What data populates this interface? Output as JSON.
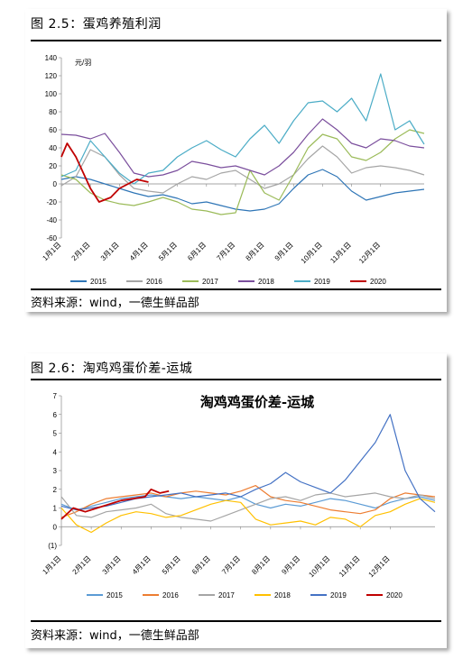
{
  "figure1": {
    "caption": "图 2.5：蛋鸡养殖利润",
    "source": "资料来源：wind，一德生鲜品部",
    "chart_data": {
      "type": "line",
      "title": "",
      "ylabel": "元/羽",
      "ylim": [
        -60,
        140
      ],
      "yticks": [
        "140",
        "120",
        "100",
        "80",
        "60",
        "40",
        "20",
        "0",
        "-20",
        "-40",
        "-60"
      ],
      "xticks": [
        "1月1日",
        "2月1日",
        "3月1日",
        "4月1日",
        "5月1日",
        "6月1日",
        "7月1日",
        "8月1日",
        "9月1日",
        "10月1日",
        "11月1日",
        "12月1日"
      ],
      "x_unit": "month",
      "legend_position": "bottom",
      "series": [
        {
          "name": "2015",
          "color": "#2E75B6",
          "x": [
            0,
            0.5,
            1,
            1.5,
            2,
            2.5,
            3,
            3.5,
            4,
            4.5,
            5,
            5.5,
            6,
            6.5,
            7,
            7.5,
            8,
            8.5,
            9,
            9.5,
            10,
            10.5,
            11,
            11.5,
            12,
            12.5
          ],
          "values": [
            5,
            8,
            5,
            0,
            -5,
            -10,
            -14,
            -12,
            -16,
            -22,
            -20,
            -24,
            -28,
            -30,
            -28,
            -22,
            -5,
            10,
            16,
            8,
            -8,
            -18,
            -14,
            -10,
            -8,
            -6
          ]
        },
        {
          "name": "2016",
          "color": "#A5A5A5",
          "x": [
            0,
            0.5,
            1,
            1.5,
            2,
            2.5,
            3,
            3.5,
            4,
            4.5,
            5,
            5.5,
            6,
            6.5,
            7,
            7.5,
            8,
            8.5,
            9,
            9.5,
            10,
            10.5,
            11,
            11.5,
            12,
            12.5
          ],
          "values": [
            -2,
            8,
            38,
            30,
            10,
            -5,
            -8,
            -10,
            0,
            8,
            5,
            12,
            15,
            5,
            -5,
            0,
            10,
            28,
            42,
            30,
            12,
            18,
            20,
            18,
            15,
            10
          ]
        },
        {
          "name": "2017",
          "color": "#9BBB59",
          "x": [
            0,
            0.5,
            1,
            1.5,
            2,
            2.5,
            3,
            3.5,
            4,
            4.5,
            5,
            5.5,
            6,
            6.5,
            7,
            7.5,
            8,
            8.5,
            9,
            9.5,
            10,
            10.5,
            11,
            11.5,
            12,
            12.5
          ],
          "values": [
            10,
            5,
            -10,
            -18,
            -22,
            -24,
            -20,
            -15,
            -20,
            -28,
            -30,
            -34,
            -32,
            15,
            -10,
            -18,
            10,
            40,
            55,
            50,
            30,
            26,
            35,
            50,
            60,
            56
          ]
        },
        {
          "name": "2018",
          "color": "#7B4F9D",
          "x": [
            0,
            0.5,
            1,
            1.5,
            2,
            2.5,
            3,
            3.5,
            4,
            4.5,
            5,
            5.5,
            6,
            6.5,
            7,
            7.5,
            8,
            8.5,
            9,
            9.5,
            10,
            10.5,
            11,
            11.5,
            12,
            12.5
          ],
          "values": [
            55,
            54,
            50,
            56,
            35,
            12,
            8,
            10,
            15,
            25,
            22,
            18,
            20,
            15,
            10,
            20,
            35,
            55,
            72,
            60,
            45,
            40,
            50,
            48,
            42,
            40
          ]
        },
        {
          "name": "2019",
          "color": "#4BACC6",
          "x": [
            0,
            0.5,
            1,
            1.5,
            2,
            2.5,
            3,
            3.5,
            4,
            4.5,
            5,
            5.5,
            6,
            6.5,
            7,
            7.5,
            8,
            8.5,
            9,
            9.5,
            10,
            10.5,
            11,
            11.5,
            12,
            12.5
          ],
          "values": [
            8,
            15,
            48,
            30,
            12,
            0,
            12,
            15,
            30,
            40,
            48,
            38,
            30,
            50,
            65,
            45,
            70,
            90,
            92,
            80,
            95,
            70,
            122,
            60,
            70,
            44
          ]
        },
        {
          "name": "2020",
          "color": "#C00000",
          "x": [
            0,
            0.2,
            0.5,
            1,
            1.3,
            1.7,
            2,
            2.3,
            2.6,
            3
          ],
          "values": [
            30,
            45,
            30,
            -5,
            -20,
            -15,
            -5,
            0,
            5,
            2
          ]
        }
      ]
    }
  },
  "figure2": {
    "caption": "图 2.6：淘鸡鸡蛋价差-运城",
    "source": "资料来源：wind，一德生鲜品部",
    "chart_data": {
      "type": "line",
      "title": "淘鸡鸡蛋价差-运城",
      "ylim": [
        -1,
        7
      ],
      "yticks": [
        "7",
        "6",
        "5",
        "4",
        "3",
        "2",
        "1",
        "0",
        "(1)"
      ],
      "xticks": [
        "1月1日",
        "2月1日",
        "3月1日",
        "4月1日",
        "5月1日",
        "6月1日",
        "7月1日",
        "8月1日",
        "9月1日",
        "10月1日",
        "11月1日",
        "12月1日"
      ],
      "x_unit": "month",
      "legend_position": "bottom",
      "series": [
        {
          "name": "2015",
          "color": "#5B9BD5",
          "x": [
            0,
            0.5,
            1,
            1.5,
            2,
            2.5,
            3,
            3.5,
            4,
            4.5,
            5,
            5.5,
            6,
            6.5,
            7,
            7.5,
            8,
            8.5,
            9,
            9.5,
            10,
            10.5,
            11,
            11.5,
            12,
            12.5
          ],
          "values": [
            1.2,
            0.9,
            1.1,
            1.3,
            1.5,
            1.6,
            1.7,
            1.6,
            1.5,
            1.6,
            1.5,
            1.4,
            1.6,
            1.2,
            1.0,
            1.2,
            1.1,
            1.3,
            1.5,
            1.4,
            1.2,
            1.0,
            1.3,
            1.5,
            1.6,
            1.4
          ]
        },
        {
          "name": "2016",
          "color": "#ED7D31",
          "x": [
            0,
            0.5,
            1,
            1.5,
            2,
            2.5,
            3,
            3.5,
            4,
            4.5,
            5,
            5.5,
            6,
            6.5,
            7,
            7.5,
            8,
            8.5,
            9,
            9.5,
            10,
            10.5,
            11,
            11.5,
            12,
            12.5
          ],
          "values": [
            0.5,
            0.8,
            1.2,
            1.5,
            1.6,
            1.7,
            1.8,
            1.6,
            1.8,
            1.9,
            1.8,
            1.7,
            1.9,
            2.2,
            1.6,
            1.4,
            1.3,
            1.1,
            0.9,
            0.8,
            0.7,
            0.9,
            1.5,
            1.8,
            1.7,
            1.6
          ]
        },
        {
          "name": "2017",
          "color": "#A5A5A5",
          "x": [
            0,
            0.5,
            1,
            1.5,
            2,
            2.5,
            3,
            3.5,
            4,
            4.5,
            5,
            5.5,
            6,
            6.5,
            7,
            7.5,
            8,
            8.5,
            9,
            9.5,
            10,
            10.5,
            11,
            11.5,
            12,
            12.5
          ],
          "values": [
            1.6,
            0.6,
            0.5,
            0.8,
            0.9,
            1.0,
            1.2,
            0.7,
            0.5,
            0.4,
            0.3,
            0.6,
            0.9,
            1.2,
            1.5,
            1.6,
            1.4,
            1.7,
            1.8,
            1.6,
            1.7,
            1.8,
            1.6,
            1.5,
            1.7,
            1.5
          ]
        },
        {
          "name": "2018",
          "color": "#FFC000",
          "x": [
            0,
            0.5,
            1,
            1.5,
            2,
            2.5,
            3,
            3.5,
            4,
            4.5,
            5,
            5.5,
            6,
            6.5,
            7,
            7.5,
            8,
            8.5,
            9,
            9.5,
            10,
            10.5,
            11,
            11.5,
            12,
            12.5
          ],
          "values": [
            1.0,
            0.1,
            -0.3,
            0.2,
            0.6,
            0.8,
            0.7,
            0.5,
            0.6,
            0.9,
            1.2,
            1.4,
            1.3,
            0.4,
            0.1,
            0.2,
            0.3,
            0.1,
            0.5,
            0.4,
            0.0,
            0.6,
            0.8,
            1.2,
            1.5,
            1.3
          ]
        },
        {
          "name": "2019",
          "color": "#4472C4",
          "x": [
            0,
            0.5,
            1,
            1.5,
            2,
            2.5,
            3,
            3.5,
            4,
            4.5,
            5,
            5.5,
            6,
            6.5,
            7,
            7.5,
            8,
            8.5,
            9,
            9.5,
            10,
            10.5,
            11,
            11.5,
            12,
            12.5
          ],
          "values": [
            1.1,
            0.9,
            1.0,
            1.1,
            1.3,
            1.5,
            1.6,
            1.7,
            1.8,
            1.6,
            1.7,
            1.8,
            1.6,
            2.0,
            2.3,
            2.9,
            2.4,
            2.1,
            1.8,
            2.5,
            3.5,
            4.5,
            6.0,
            3.0,
            1.5,
            0.8
          ]
        },
        {
          "name": "2020",
          "color": "#C00000",
          "x": [
            0,
            0.4,
            0.8,
            1.2,
            1.6,
            2,
            2.4,
            2.8,
            3,
            3.3,
            3.6
          ],
          "values": [
            0.4,
            1.0,
            0.8,
            1.0,
            1.2,
            1.4,
            1.5,
            1.6,
            2.0,
            1.8,
            1.9
          ]
        }
      ]
    }
  }
}
